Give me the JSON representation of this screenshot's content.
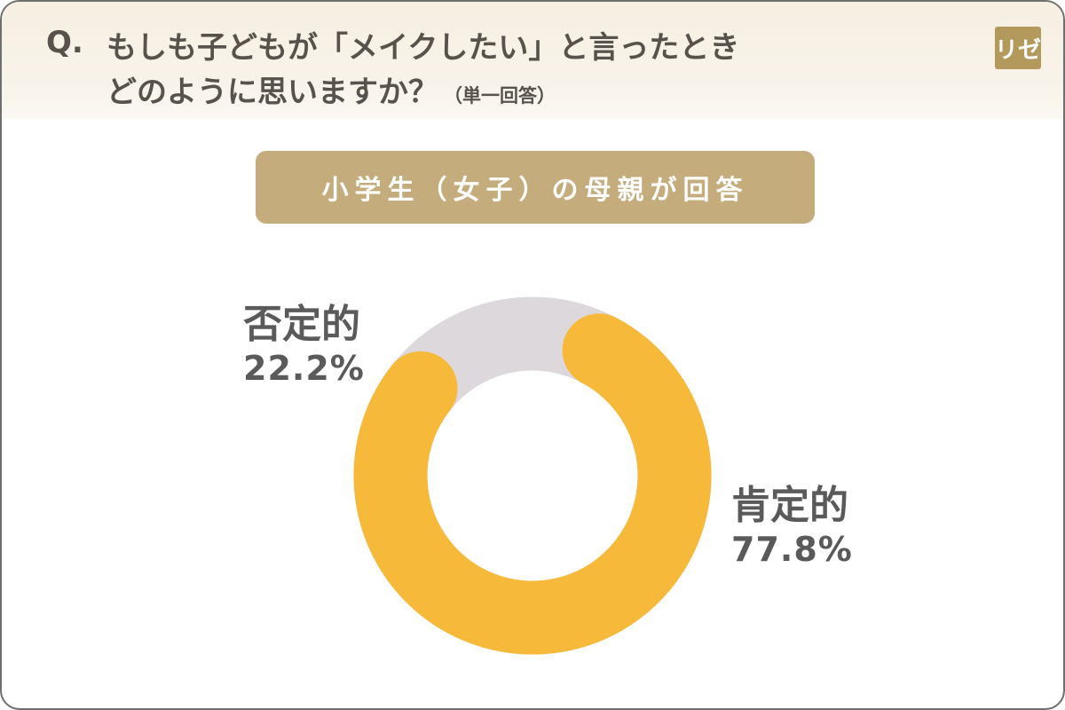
{
  "header": {
    "q_mark": "Q.",
    "line1": "もしも子どもが「メイクしたい」と言ったとき",
    "line2": "どのように思いますか？",
    "note": "（単一回答）",
    "logo": "リゼ"
  },
  "banner": "小学生（女子）の母親が回答",
  "colors": {
    "positive": "#f7b93a",
    "negative": "#dcd8dc",
    "text": "#5a5a5a",
    "banner": "#c4ac7c"
  },
  "chart_data": {
    "type": "pie",
    "donut": true,
    "categories": [
      "肯定的",
      "否定的"
    ],
    "values": [
      77.8,
      22.2
    ],
    "value_labels": [
      "77.8%",
      "22.2%"
    ]
  }
}
